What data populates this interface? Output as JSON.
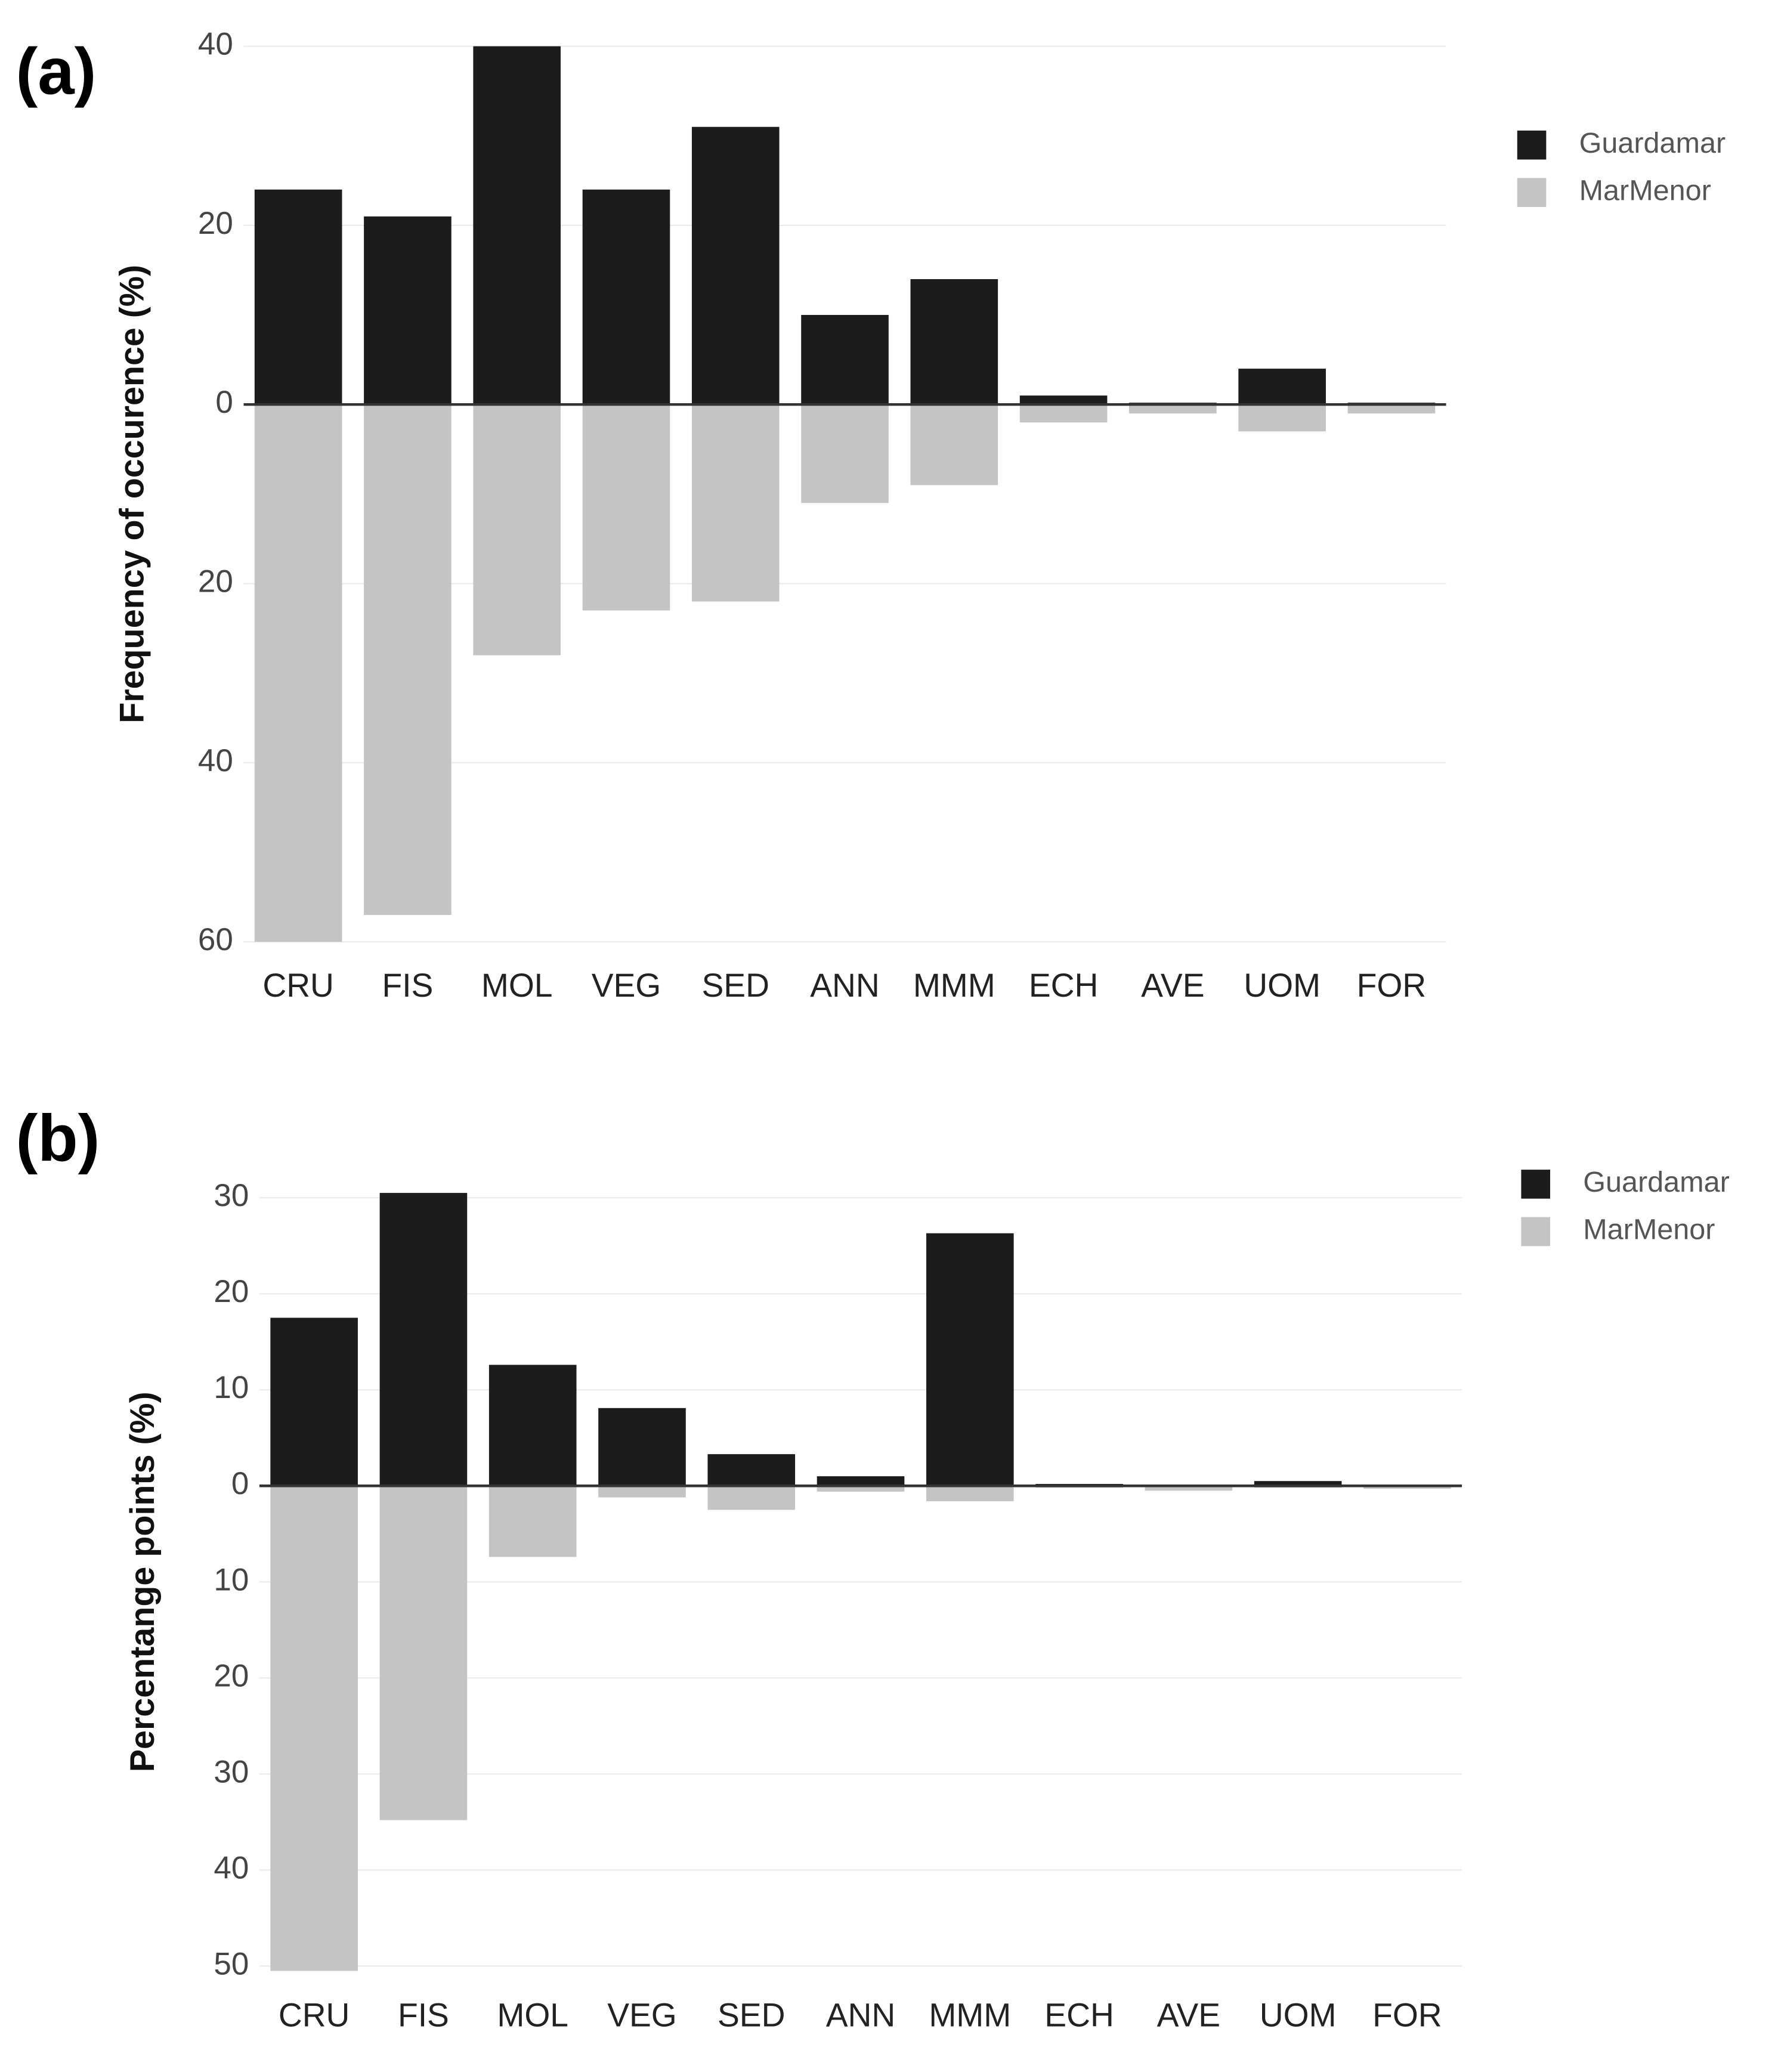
{
  "chart_data": [
    {
      "type": "bar",
      "label": "(a)",
      "ylabel": "Frequency of occurence (%)",
      "categories": [
        "CRU",
        "FIS",
        "MOL",
        "VEG",
        "SED",
        "ANN",
        "MMM",
        "ECH",
        "AVE",
        "UOM",
        "FOR"
      ],
      "series": [
        {
          "name": "Guardamar",
          "color": "#1c1c1c",
          "values": [
            24,
            21,
            40,
            24,
            31,
            10,
            14,
            1,
            0.2,
            4,
            0.2
          ]
        },
        {
          "name": "MarMenor",
          "color": "#c4c4c4",
          "values": [
            -60,
            -57,
            -28,
            -23,
            -22,
            -11,
            -9,
            -2,
            -1,
            -3,
            -1
          ]
        }
      ],
      "ylim": [
        -60,
        40
      ],
      "yticks": [
        40,
        20,
        0,
        {
          "value": -20,
          "label": "20"
        },
        {
          "value": -40,
          "label": "40"
        },
        {
          "value": -60,
          "label": "60"
        }
      ],
      "grid": true,
      "legend": "right"
    },
    {
      "type": "bar",
      "label": "(b)",
      "ylabel": "Percentange points (%)",
      "categories": [
        "CRU",
        "FIS",
        "MOL",
        "VEG",
        "SED",
        "ANN",
        "MMM",
        "ECH",
        "AVE",
        "UOM",
        "FOR"
      ],
      "series": [
        {
          "name": "Guardamar",
          "color": "#1c1c1c",
          "values": [
            17.5,
            30.5,
            12.6,
            8.1,
            3.3,
            1,
            26.3,
            0.2,
            0,
            0.5,
            0.1
          ]
        },
        {
          "name": "MarMenor",
          "color": "#c4c4c4",
          "values": [
            -50.5,
            -34.8,
            -7.4,
            -1.2,
            -2.5,
            -0.6,
            -1.6,
            -0.2,
            -0.5,
            -0.2,
            -0.3
          ]
        }
      ],
      "ylim": [
        -51,
        31
      ],
      "yticks": [
        30,
        20,
        10,
        0,
        {
          "value": -10,
          "label": "10"
        },
        {
          "value": -20,
          "label": "20"
        },
        {
          "value": -30,
          "label": "30"
        },
        {
          "value": -40,
          "label": "40"
        },
        {
          "value": -50,
          "label": "50"
        }
      ],
      "grid": true,
      "legend": "right"
    }
  ]
}
